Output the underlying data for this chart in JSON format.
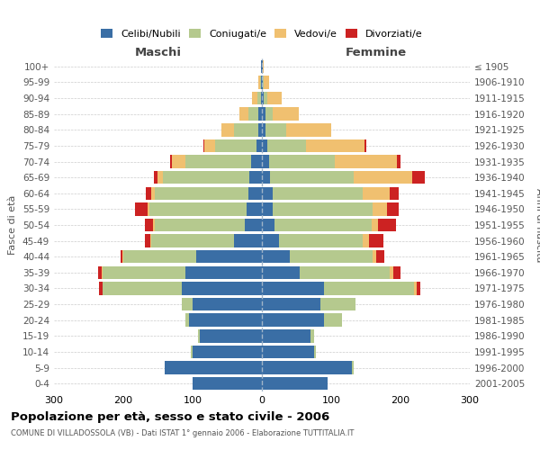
{
  "age_groups": [
    "0-4",
    "5-9",
    "10-14",
    "15-19",
    "20-24",
    "25-29",
    "30-34",
    "35-39",
    "40-44",
    "45-49",
    "50-54",
    "55-59",
    "60-64",
    "65-69",
    "70-74",
    "75-79",
    "80-84",
    "85-89",
    "90-94",
    "95-99",
    "100+"
  ],
  "birth_years": [
    "2001-2005",
    "1996-2000",
    "1991-1995",
    "1986-1990",
    "1981-1985",
    "1976-1980",
    "1971-1975",
    "1966-1970",
    "1961-1965",
    "1956-1960",
    "1951-1955",
    "1946-1950",
    "1941-1945",
    "1936-1940",
    "1931-1935",
    "1926-1930",
    "1921-1925",
    "1916-1920",
    "1911-1915",
    "1906-1910",
    "≤ 1905"
  ],
  "colors": {
    "celibi": "#3a6ea5",
    "coniugati": "#b5c98e",
    "vedovi": "#f0c070",
    "divorziati": "#cc2222"
  },
  "male": {
    "celibi": [
      100,
      140,
      100,
      90,
      105,
      100,
      115,
      110,
      95,
      40,
      25,
      22,
      20,
      18,
      15,
      8,
      5,
      5,
      1,
      1,
      1
    ],
    "coniugati": [
      0,
      0,
      2,
      2,
      5,
      15,
      115,
      120,
      105,
      120,
      130,
      140,
      135,
      125,
      95,
      60,
      35,
      15,
      5,
      2,
      0
    ],
    "vedovi": [
      0,
      0,
      0,
      0,
      0,
      0,
      0,
      1,
      1,
      1,
      2,
      3,
      5,
      8,
      20,
      15,
      18,
      12,
      8,
      2,
      0
    ],
    "divorziati": [
      0,
      0,
      0,
      0,
      0,
      0,
      5,
      5,
      3,
      8,
      12,
      18,
      8,
      5,
      2,
      2,
      0,
      0,
      0,
      0,
      0
    ]
  },
  "female": {
    "celibi": [
      95,
      130,
      75,
      70,
      90,
      85,
      90,
      55,
      40,
      25,
      18,
      15,
      15,
      12,
      10,
      8,
      5,
      5,
      3,
      1,
      1
    ],
    "coniugati": [
      0,
      2,
      3,
      5,
      25,
      50,
      130,
      130,
      120,
      120,
      140,
      145,
      130,
      120,
      95,
      55,
      30,
      10,
      5,
      1,
      0
    ],
    "vedovi": [
      0,
      0,
      0,
      0,
      0,
      0,
      3,
      5,
      5,
      10,
      10,
      20,
      40,
      85,
      90,
      85,
      65,
      38,
      20,
      8,
      2
    ],
    "divorziati": [
      0,
      0,
      0,
      0,
      0,
      0,
      5,
      10,
      12,
      20,
      25,
      18,
      12,
      18,
      5,
      2,
      0,
      0,
      0,
      0,
      0
    ]
  },
  "xlim": 300,
  "title": "Popolazione per età, sesso e stato civile - 2006",
  "subtitle": "COMUNE DI VILLADOSSOLA (VB) - Dati ISTAT 1° gennaio 2006 - Elaborazione TUTTITALIA.IT",
  "ylabel_left": "Fasce di età",
  "ylabel_right": "Anni di nascita",
  "xlabel_left": "Maschi",
  "xlabel_right": "Femmine"
}
